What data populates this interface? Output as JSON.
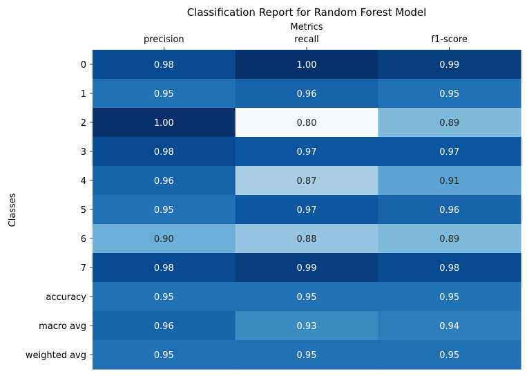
{
  "chart_data": {
    "type": "heatmap",
    "title": "Classification Report for Random Forest Model",
    "xlabel": "Metrics",
    "ylabel": "Classes",
    "x_axis_position": "top",
    "colorbar": false,
    "colormap": "Blues",
    "columns": [
      "precision",
      "recall",
      "f1-score"
    ],
    "rows": [
      "0",
      "1",
      "2",
      "3",
      "4",
      "5",
      "6",
      "7",
      "accuracy",
      "macro avg",
      "weighted avg"
    ],
    "values": [
      [
        0.98,
        1.0,
        0.99
      ],
      [
        0.95,
        0.96,
        0.95
      ],
      [
        1.0,
        0.8,
        0.89
      ],
      [
        0.98,
        0.97,
        0.97
      ],
      [
        0.96,
        0.87,
        0.91
      ],
      [
        0.95,
        0.97,
        0.96
      ],
      [
        0.9,
        0.88,
        0.89
      ],
      [
        0.98,
        0.99,
        0.98
      ],
      [
        0.95,
        0.95,
        0.95
      ],
      [
        0.96,
        0.93,
        0.94
      ],
      [
        0.95,
        0.95,
        0.95
      ]
    ],
    "value_format": "0.00",
    "vmin": 0.8,
    "vmax": 1.0
  }
}
